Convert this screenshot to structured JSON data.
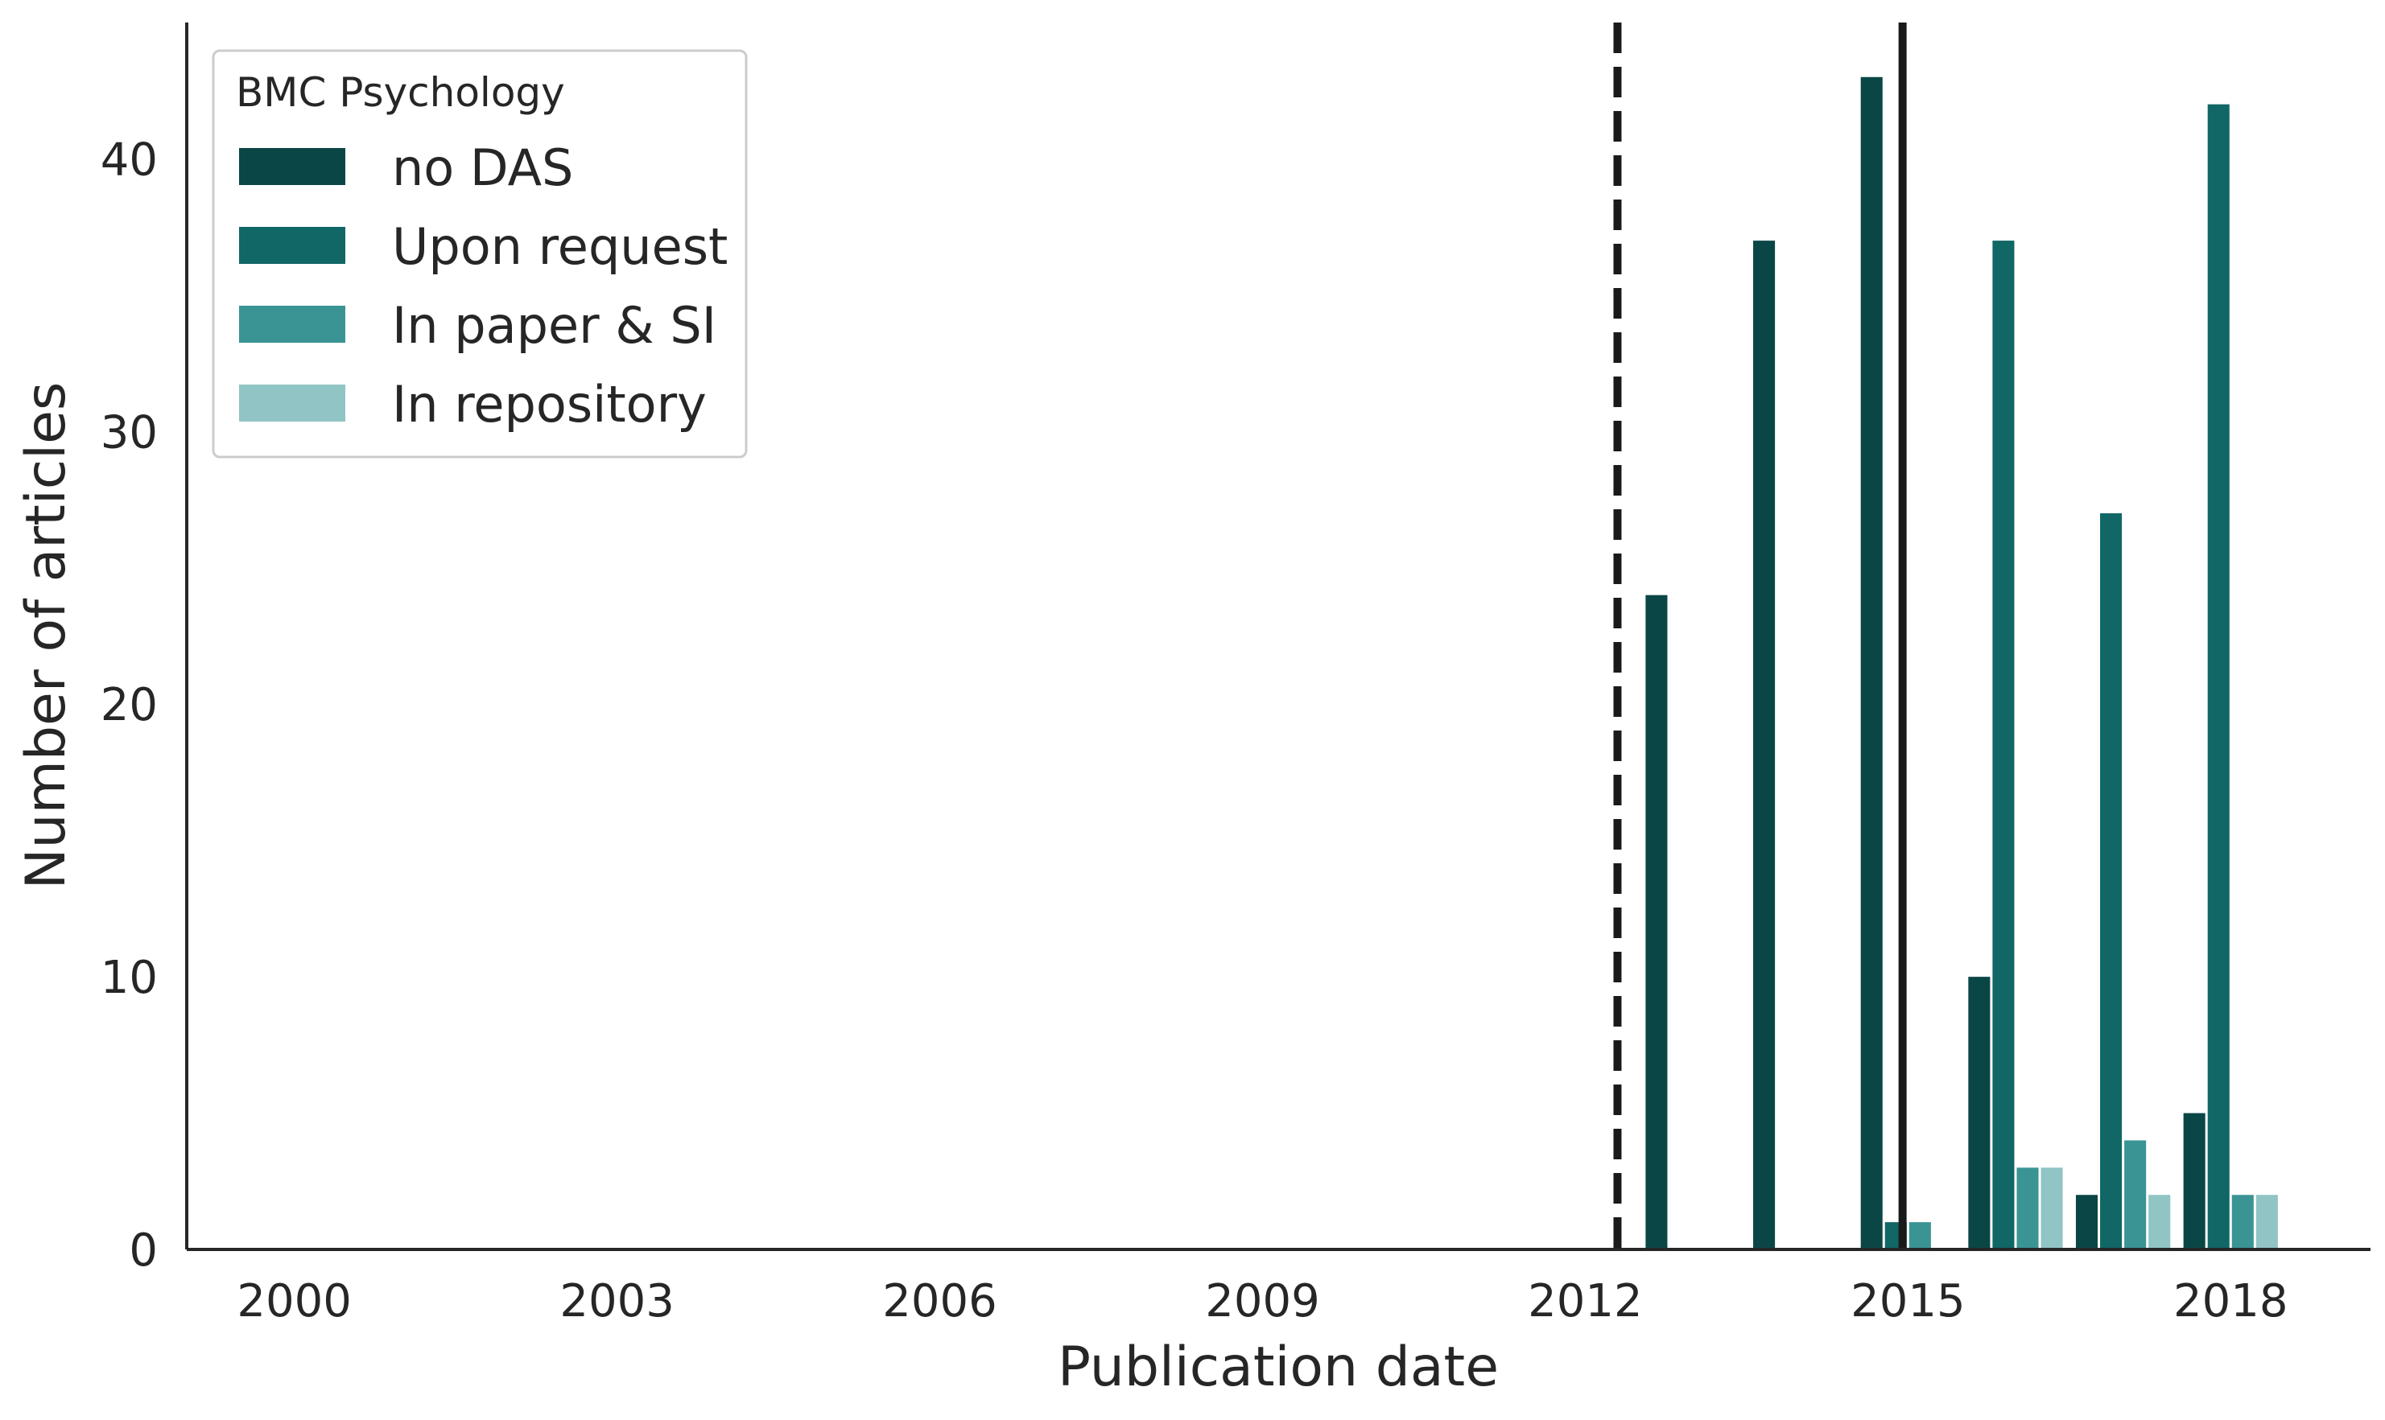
{
  "chart_data": {
    "type": "bar",
    "xlabel": "Publication date",
    "ylabel": "Number of articles",
    "xlim": [
      1999,
      2019.3
    ],
    "ylim": [
      0,
      45
    ],
    "x_ticks": [
      2000,
      2003,
      2006,
      2009,
      2012,
      2015,
      2018
    ],
    "x_tick_labels": [
      "2000",
      "2003",
      "2006",
      "2009",
      "2012",
      "2015",
      "2018"
    ],
    "y_ticks": [
      0,
      10,
      20,
      30,
      40
    ],
    "y_tick_labels": [
      "0",
      "10",
      "20",
      "30",
      "40"
    ],
    "grid": false,
    "legend": {
      "title": "BMC Psychology",
      "placement": "top-left"
    },
    "categories": [
      2013,
      2014,
      2015,
      2016,
      2017,
      2018
    ],
    "series": [
      {
        "name": "no DAS",
        "color": "#0b4646",
        "values": [
          24,
          37,
          43,
          10,
          2,
          5
        ]
      },
      {
        "name": "Upon request",
        "color": "#116666",
        "values": [
          0,
          0,
          1,
          37,
          27,
          42
        ]
      },
      {
        "name": "In paper & SI",
        "color": "#3a9494",
        "values": [
          0,
          0,
          1,
          3,
          4,
          2
        ]
      },
      {
        "name": "In repository",
        "color": "#91c4c4",
        "values": [
          0,
          0,
          0,
          3,
          2,
          2
        ]
      }
    ],
    "vlines": [
      {
        "x": 2012.3,
        "style": "dashed",
        "color": "#1a1a1a"
      },
      {
        "x": 2014.95,
        "style": "solid",
        "color": "#1a1a1a"
      }
    ]
  }
}
